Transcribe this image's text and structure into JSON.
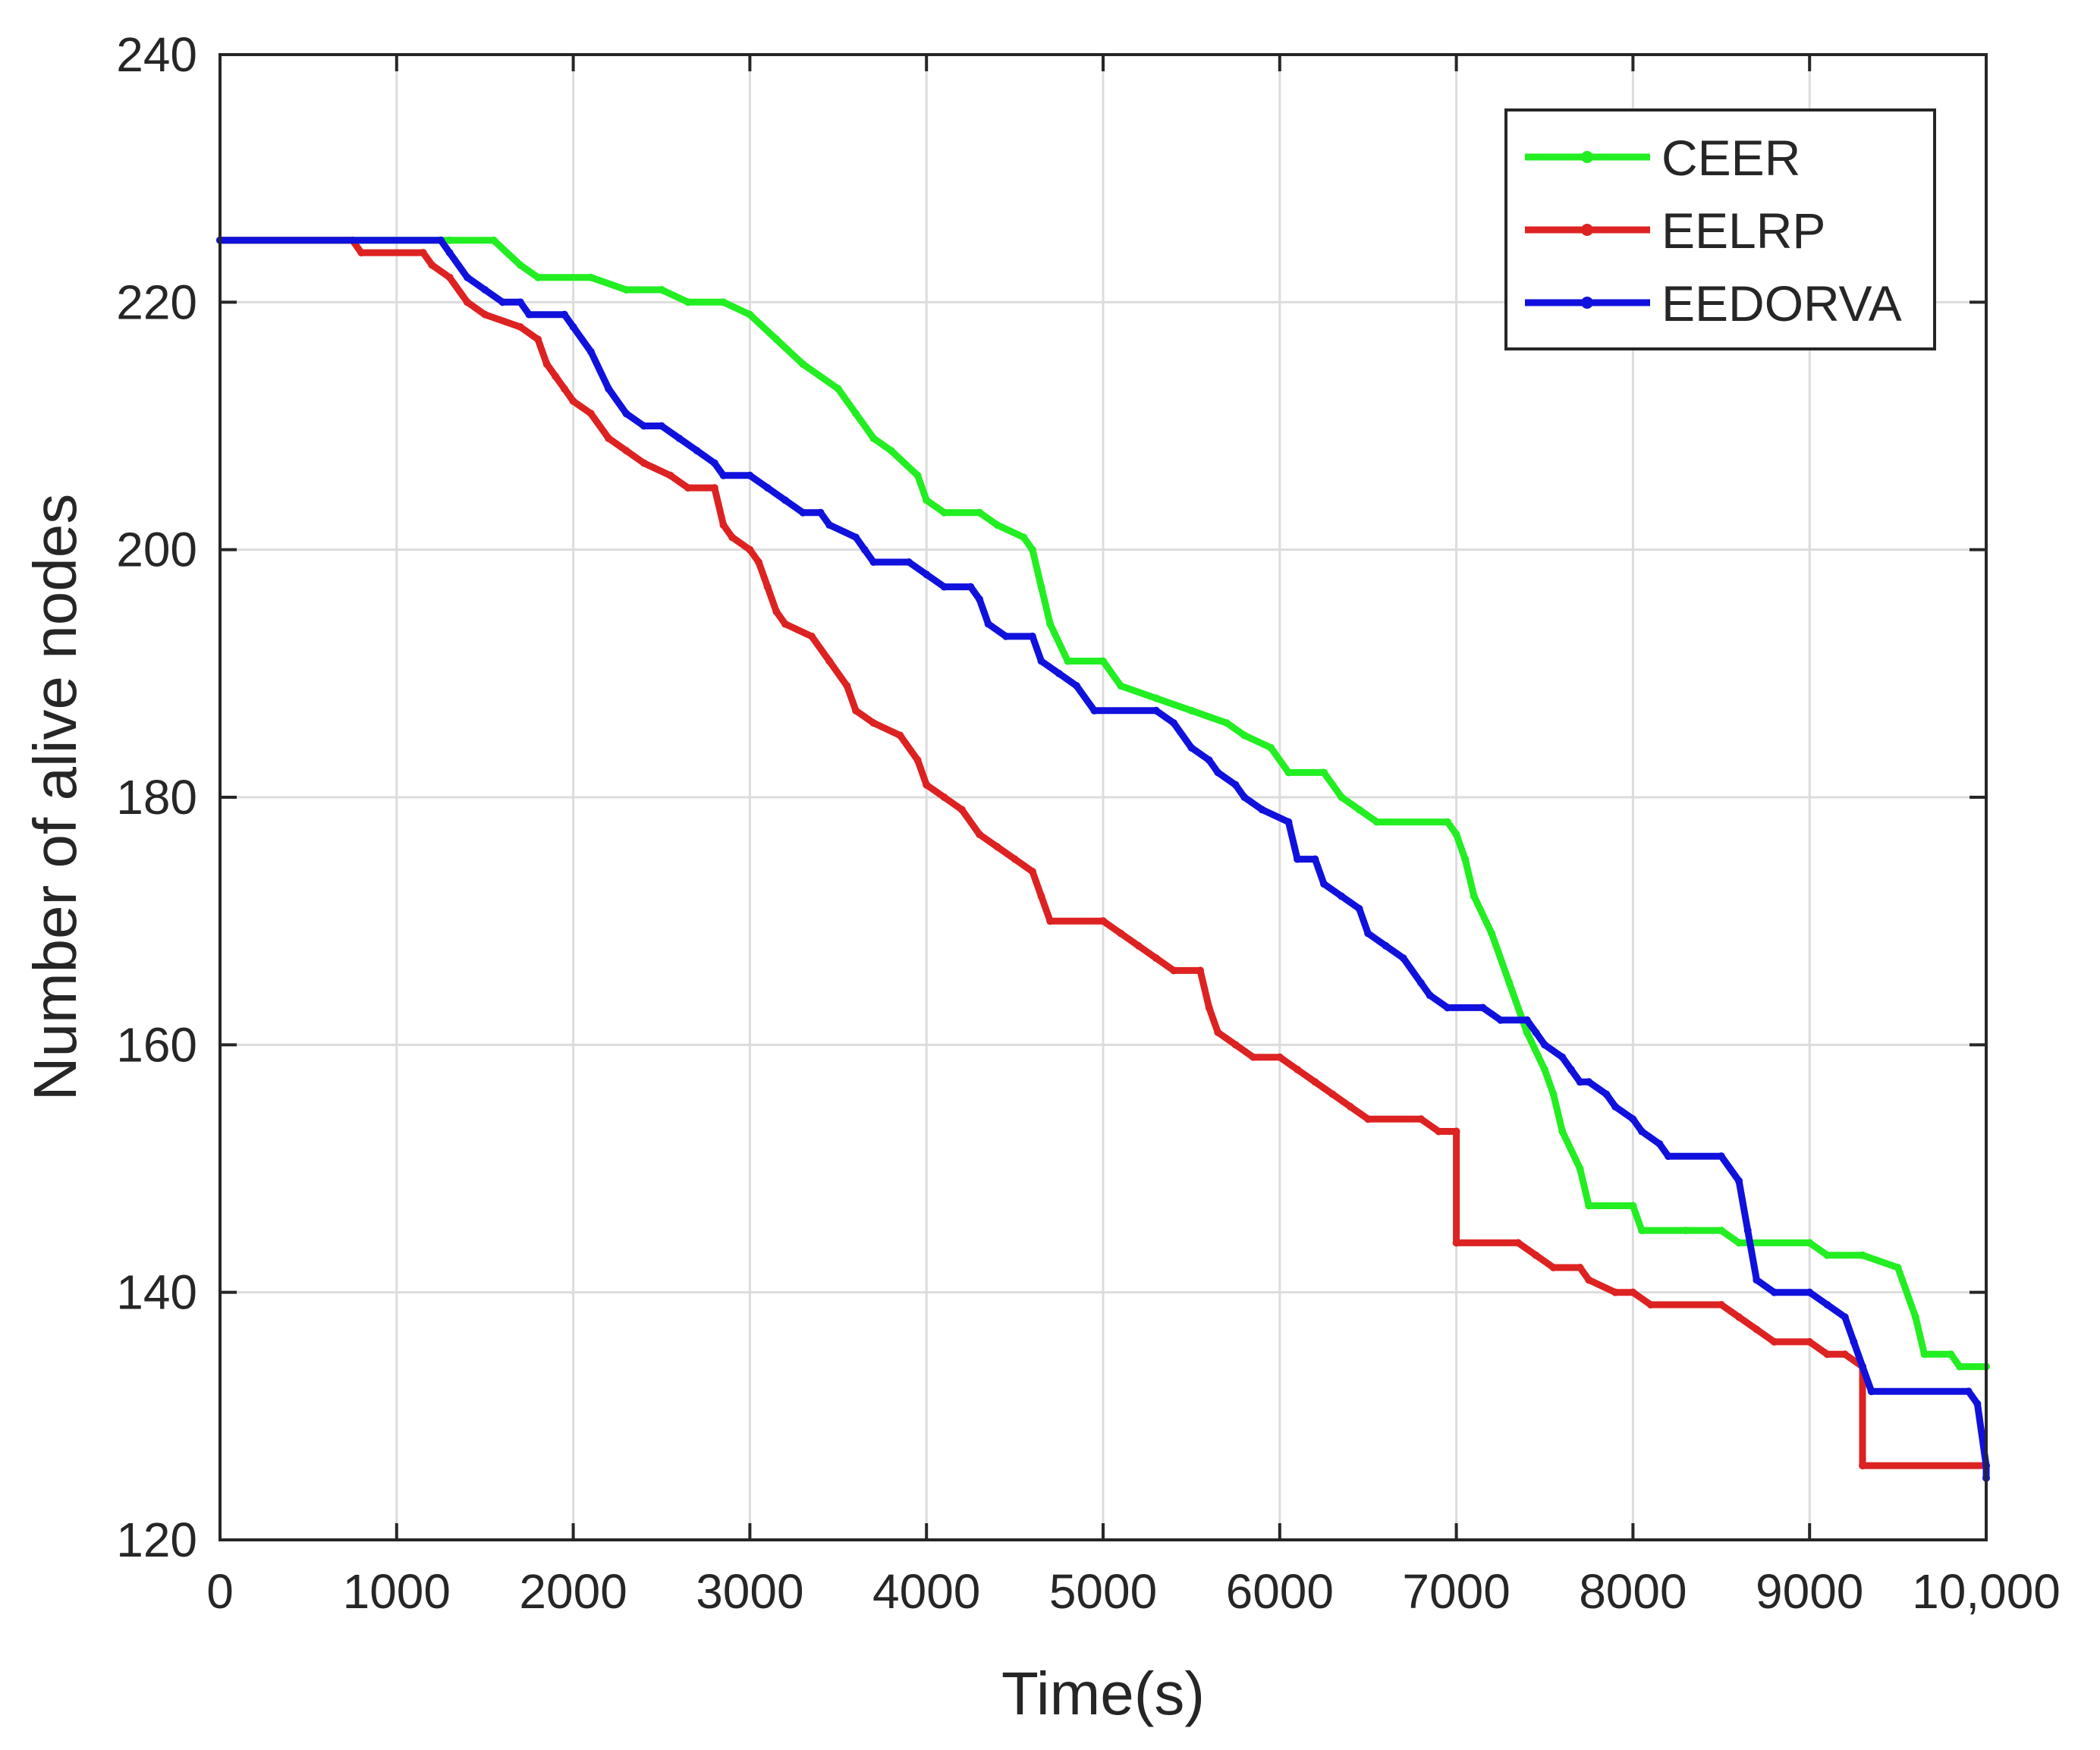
{
  "chart_data": {
    "type": "line",
    "title": "",
    "xlabel": "Time(s)",
    "ylabel": "Number of alive nodes",
    "xlim": [
      0,
      10000
    ],
    "ylim": [
      120,
      240
    ],
    "grid": true,
    "legend_position": "top-right",
    "x_tick_labels": [
      "0",
      "1000",
      "2000",
      "3000",
      "4000",
      "5000",
      "6000",
      "7000",
      "8000",
      "9000",
      "10,000"
    ],
    "y_tick_labels": [
      "120",
      "140",
      "160",
      "180",
      "200",
      "220",
      "240"
    ],
    "series": [
      {
        "name": "CEER",
        "color": "#22ee22",
        "points": [
          [
            0,
            225
          ],
          [
            1300,
            225
          ],
          [
            1550,
            225
          ],
          [
            1700,
            223
          ],
          [
            1800,
            222
          ],
          [
            2100,
            222
          ],
          [
            2300,
            221
          ],
          [
            2500,
            221
          ],
          [
            2650,
            220
          ],
          [
            2850,
            220
          ],
          [
            3000,
            219
          ],
          [
            3150,
            217
          ],
          [
            3300,
            215
          ],
          [
            3500,
            213
          ],
          [
            3600,
            211
          ],
          [
            3700,
            209
          ],
          [
            3800,
            208
          ],
          [
            3950,
            206
          ],
          [
            4000,
            204
          ],
          [
            4100,
            203
          ],
          [
            4300,
            203
          ],
          [
            4400,
            202
          ],
          [
            4550,
            201
          ],
          [
            4600,
            200
          ],
          [
            4650,
            197
          ],
          [
            4700,
            194
          ],
          [
            4800,
            191
          ],
          [
            5000,
            191
          ],
          [
            5100,
            189
          ],
          [
            5300,
            188
          ],
          [
            5500,
            187
          ],
          [
            5700,
            186
          ],
          [
            5800,
            185
          ],
          [
            5950,
            184
          ],
          [
            6050,
            182
          ],
          [
            6250,
            182
          ],
          [
            6350,
            180
          ],
          [
            6450,
            179
          ],
          [
            6550,
            178
          ],
          [
            6950,
            178
          ],
          [
            7000,
            177
          ],
          [
            7050,
            175
          ],
          [
            7100,
            172
          ],
          [
            7200,
            169
          ],
          [
            7300,
            165
          ],
          [
            7400,
            161
          ],
          [
            7500,
            158
          ],
          [
            7550,
            156
          ],
          [
            7600,
            153
          ],
          [
            7700,
            150
          ],
          [
            7750,
            147
          ],
          [
            8000,
            147
          ],
          [
            8050,
            145
          ],
          [
            8300,
            145
          ],
          [
            8500,
            145
          ],
          [
            8600,
            144
          ],
          [
            9000,
            144
          ],
          [
            9100,
            143
          ],
          [
            9300,
            143
          ],
          [
            9500,
            142
          ],
          [
            9600,
            138
          ],
          [
            9650,
            135
          ],
          [
            9800,
            135
          ],
          [
            9850,
            134
          ],
          [
            10000,
            134
          ]
        ]
      },
      {
        "name": "EELRP",
        "color": "#dd2222",
        "points": [
          [
            0,
            225
          ],
          [
            750,
            225
          ],
          [
            800,
            224
          ],
          [
            1150,
            224
          ],
          [
            1200,
            223
          ],
          [
            1300,
            222
          ],
          [
            1400,
            220
          ],
          [
            1500,
            219
          ],
          [
            1700,
            218
          ],
          [
            1800,
            217
          ],
          [
            1850,
            215
          ],
          [
            1900,
            214
          ],
          [
            1950,
            213
          ],
          [
            2000,
            212
          ],
          [
            2100,
            211
          ],
          [
            2200,
            209
          ],
          [
            2300,
            208
          ],
          [
            2400,
            207
          ],
          [
            2550,
            206
          ],
          [
            2650,
            205
          ],
          [
            2800,
            205
          ],
          [
            2850,
            202
          ],
          [
            2900,
            201
          ],
          [
            3000,
            200
          ],
          [
            3050,
            199
          ],
          [
            3100,
            197
          ],
          [
            3150,
            195
          ],
          [
            3200,
            194
          ],
          [
            3350,
            193
          ],
          [
            3450,
            191
          ],
          [
            3550,
            189
          ],
          [
            3600,
            187
          ],
          [
            3700,
            186
          ],
          [
            3850,
            185
          ],
          [
            3950,
            183
          ],
          [
            4000,
            181
          ],
          [
            4100,
            180
          ],
          [
            4200,
            179
          ],
          [
            4300,
            177
          ],
          [
            4400,
            176
          ],
          [
            4500,
            175
          ],
          [
            4600,
            174
          ],
          [
            4650,
            172
          ],
          [
            4700,
            170
          ],
          [
            5000,
            170
          ],
          [
            5100,
            169
          ],
          [
            5200,
            168
          ],
          [
            5300,
            167
          ],
          [
            5400,
            166
          ],
          [
            5550,
            166
          ],
          [
            5600,
            163
          ],
          [
            5650,
            161
          ],
          [
            5750,
            160
          ],
          [
            5850,
            159
          ],
          [
            6000,
            159
          ],
          [
            6100,
            158
          ],
          [
            6200,
            157
          ],
          [
            6300,
            156
          ],
          [
            6400,
            155
          ],
          [
            6500,
            154
          ],
          [
            6800,
            154
          ],
          [
            6900,
            153
          ],
          [
            7000,
            153
          ],
          [
            7000,
            144
          ],
          [
            7350,
            144
          ],
          [
            7450,
            143
          ],
          [
            7550,
            142
          ],
          [
            7700,
            142
          ],
          [
            7750,
            141
          ],
          [
            7900,
            140
          ],
          [
            8000,
            140
          ],
          [
            8100,
            139
          ],
          [
            8500,
            139
          ],
          [
            8600,
            138
          ],
          [
            8700,
            137
          ],
          [
            8800,
            136
          ],
          [
            9000,
            136
          ],
          [
            9100,
            135
          ],
          [
            9200,
            135
          ],
          [
            9300,
            134
          ],
          [
            9300,
            126
          ],
          [
            10000,
            126
          ]
        ]
      },
      {
        "name": "EEDORVA",
        "color": "#1111dd",
        "points": [
          [
            0,
            225
          ],
          [
            1250,
            225
          ],
          [
            1300,
            224
          ],
          [
            1400,
            222
          ],
          [
            1500,
            221
          ],
          [
            1600,
            220
          ],
          [
            1700,
            220
          ],
          [
            1750,
            219
          ],
          [
            1950,
            219
          ],
          [
            2000,
            218
          ],
          [
            2100,
            216
          ],
          [
            2200,
            213
          ],
          [
            2300,
            211
          ],
          [
            2400,
            210
          ],
          [
            2500,
            210
          ],
          [
            2600,
            209
          ],
          [
            2700,
            208
          ],
          [
            2800,
            207
          ],
          [
            2850,
            206
          ],
          [
            3000,
            206
          ],
          [
            3100,
            205
          ],
          [
            3200,
            204
          ],
          [
            3300,
            203
          ],
          [
            3400,
            203
          ],
          [
            3450,
            202
          ],
          [
            3600,
            201
          ],
          [
            3650,
            200
          ],
          [
            3700,
            199
          ],
          [
            3900,
            199
          ],
          [
            4000,
            198
          ],
          [
            4100,
            197
          ],
          [
            4250,
            197
          ],
          [
            4300,
            196
          ],
          [
            4350,
            194
          ],
          [
            4450,
            193
          ],
          [
            4600,
            193
          ],
          [
            4650,
            191
          ],
          [
            4750,
            190
          ],
          [
            4850,
            189
          ],
          [
            4950,
            187
          ],
          [
            5300,
            187
          ],
          [
            5400,
            186
          ],
          [
            5500,
            184
          ],
          [
            5600,
            183
          ],
          [
            5650,
            182
          ],
          [
            5750,
            181
          ],
          [
            5800,
            180
          ],
          [
            5900,
            179
          ],
          [
            6050,
            178
          ],
          [
            6100,
            175
          ],
          [
            6200,
            175
          ],
          [
            6250,
            173
          ],
          [
            6350,
            172
          ],
          [
            6450,
            171
          ],
          [
            6500,
            169
          ],
          [
            6600,
            168
          ],
          [
            6700,
            167
          ],
          [
            6800,
            165
          ],
          [
            6850,
            164
          ],
          [
            6950,
            163
          ],
          [
            7150,
            163
          ],
          [
            7250,
            162
          ],
          [
            7400,
            162
          ],
          [
            7450,
            161
          ],
          [
            7500,
            160
          ],
          [
            7600,
            159
          ],
          [
            7650,
            158
          ],
          [
            7700,
            157
          ],
          [
            7750,
            157
          ],
          [
            7850,
            156
          ],
          [
            7900,
            155
          ],
          [
            8000,
            154
          ],
          [
            8050,
            153
          ],
          [
            8150,
            152
          ],
          [
            8200,
            151
          ],
          [
            8500,
            151
          ],
          [
            8600,
            149
          ],
          [
            8650,
            145
          ],
          [
            8700,
            141
          ],
          [
            8800,
            140
          ],
          [
            9000,
            140
          ],
          [
            9100,
            139
          ],
          [
            9200,
            138
          ],
          [
            9250,
            136
          ],
          [
            9300,
            134
          ],
          [
            9350,
            132
          ],
          [
            9900,
            132
          ],
          [
            9950,
            131
          ],
          [
            10000,
            126
          ],
          [
            10000,
            125
          ]
        ]
      }
    ]
  }
}
